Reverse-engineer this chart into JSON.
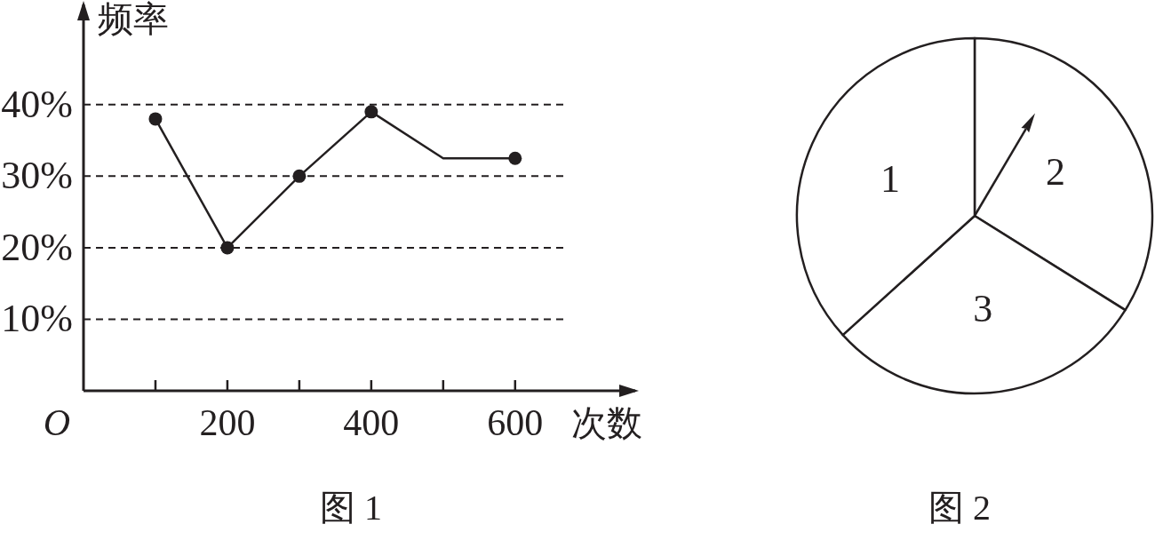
{
  "chart_data": [
    {
      "type": "line",
      "title": "图 1",
      "xlabel": "次数",
      "ylabel": "频率",
      "x": [
        100,
        200,
        300,
        400,
        500,
        600
      ],
      "series": [
        {
          "type": "line",
          "color": "#231f20",
          "marker": "none",
          "values": [
            38,
            20,
            30,
            39,
            32.5,
            32.5
          ]
        },
        {
          "type": "scatter",
          "color": "#231f20",
          "marker": "circle",
          "values": [
            38,
            20,
            30,
            39,
            null,
            32.5
          ]
        }
      ],
      "xlim": [
        0,
        767
      ],
      "ylim": [
        0,
        54
      ],
      "xticks": [
        {
          "value": 0,
          "label": "O"
        },
        {
          "value": 100,
          "label": null
        },
        200,
        {
          "value": 300,
          "label": null
        },
        400,
        {
          "value": 500,
          "label": null
        },
        600
      ],
      "yticks": [
        {
          "value": 10,
          "label": "10%"
        },
        {
          "value": 20,
          "label": "20%"
        },
        {
          "value": 30,
          "label": "30%"
        },
        {
          "value": 40,
          "label": "40%"
        }
      ],
      "grid": "y"
    },
    {
      "type": "pie",
      "title": "图 2",
      "categories": [
        "2",
        "3",
        "1"
      ],
      "values": [
        33.9,
        29.4,
        36.7
      ],
      "colors": [
        "#ffffff",
        "#ffffff",
        "#ffffff"
      ],
      "needle": "2"
    }
  ]
}
